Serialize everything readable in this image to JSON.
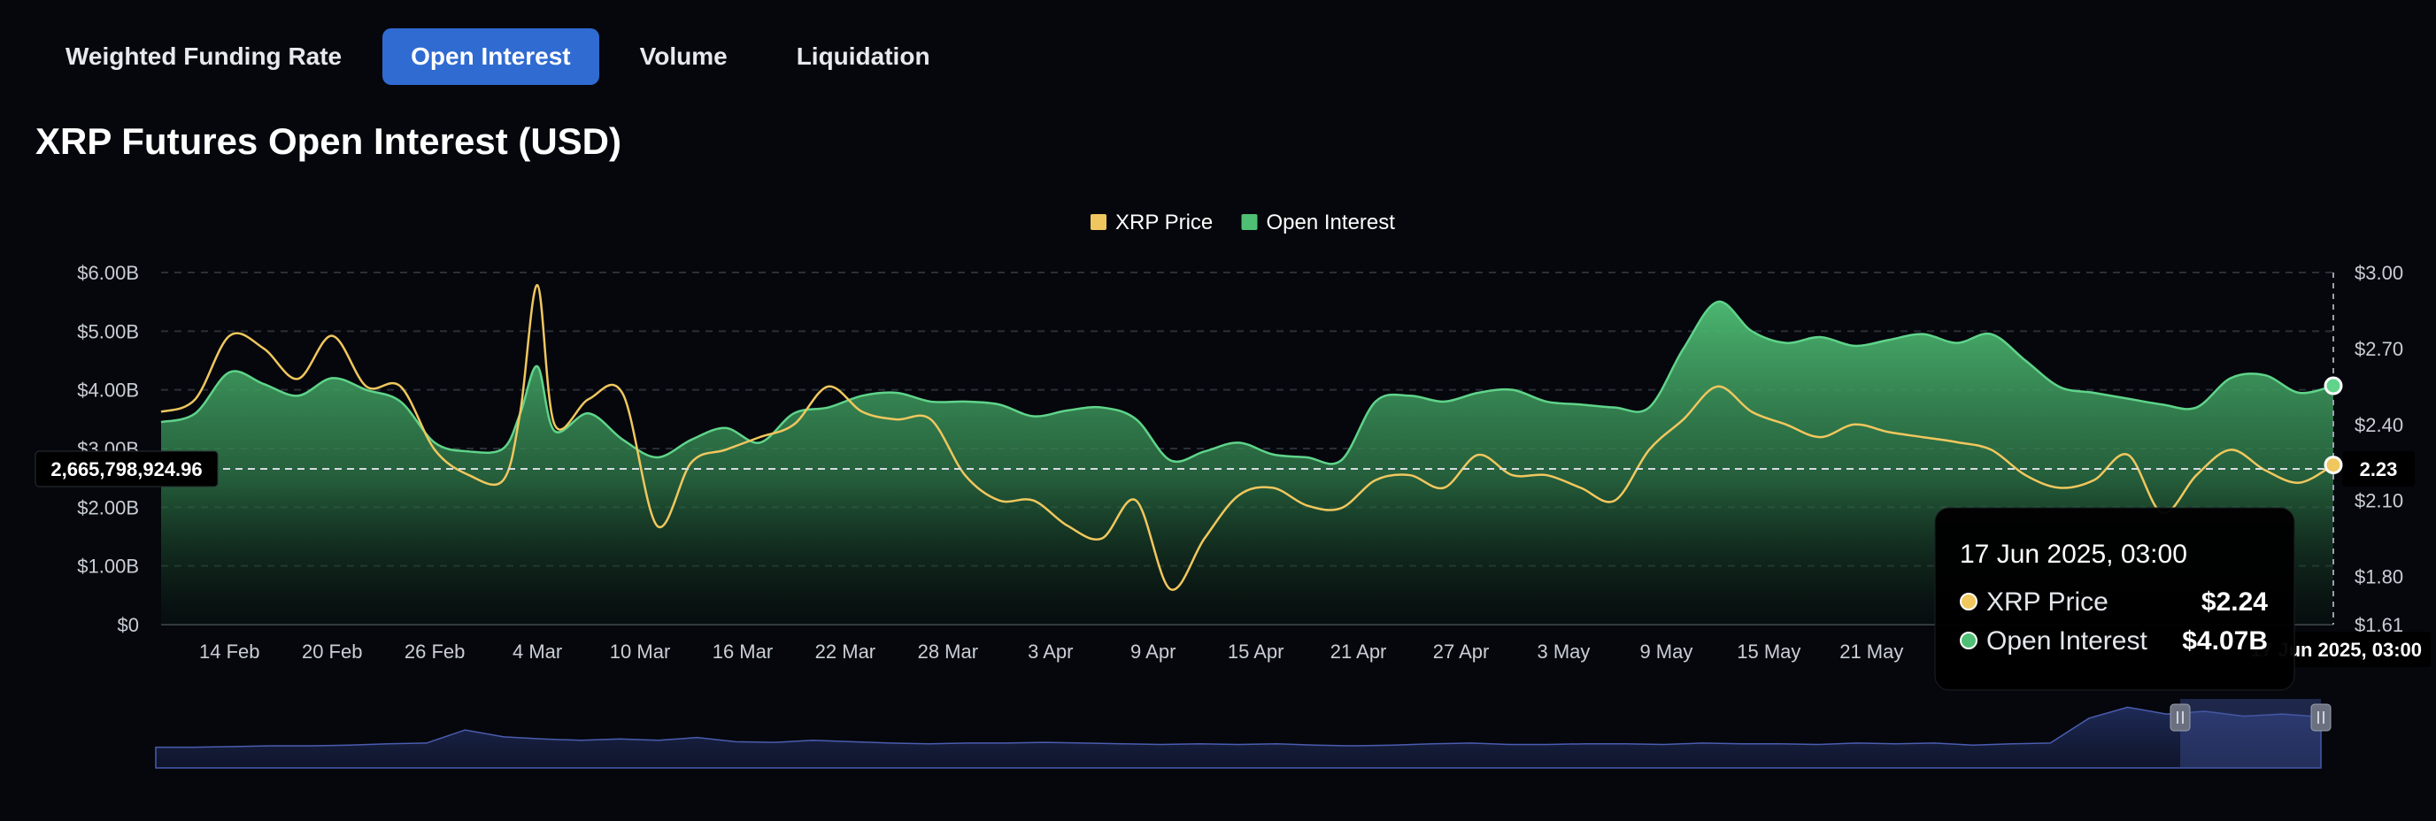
{
  "tabs": [
    {
      "label": "Weighted Funding Rate",
      "active": false
    },
    {
      "label": "Open Interest",
      "active": true
    },
    {
      "label": "Volume",
      "active": false
    },
    {
      "label": "Liquidation",
      "active": false
    }
  ],
  "page_title": "XRP Futures Open Interest (USD)",
  "colors": {
    "accent": "#2f6bd1",
    "price": "#f0c75e",
    "oi": "#4fbf75",
    "navigator": "#3d4f94"
  },
  "chart_data": {
    "type": "area",
    "legend": {
      "position": "top-center",
      "items": [
        {
          "name": "XRP Price",
          "color": "#f0c75e"
        },
        {
          "name": "Open Interest",
          "color": "#4fbf75"
        }
      ]
    },
    "y_left": {
      "ticks": [
        "$0",
        "$1.00B",
        "$2.00B",
        "$3.00B",
        "$4.00B",
        "$5.00B",
        "$6.00B"
      ],
      "range": [
        0,
        6
      ]
    },
    "y_right": {
      "ticks": [
        "$1.61",
        "$1.80",
        "$2.10",
        "$2.40",
        "$2.70",
        "$3.00"
      ],
      "range": [
        1.61,
        3.0
      ]
    },
    "x_ticks": [
      "14 Feb",
      "20 Feb",
      "26 Feb",
      "4 Mar",
      "10 Mar",
      "16 Mar",
      "22 Mar",
      "28 Mar",
      "3 Apr",
      "9 Apr",
      "15 Apr",
      "21 Apr",
      "27 Apr",
      "3 May",
      "9 May",
      "15 May",
      "21 May"
    ],
    "x_range": [
      "10 Feb",
      "17 Jun"
    ],
    "grid": true,
    "series": [
      {
        "name": "Open Interest",
        "unit": "B USD",
        "x": [
          "10 Feb",
          "12 Feb",
          "14 Feb",
          "16 Feb",
          "18 Feb",
          "20 Feb",
          "22 Feb",
          "24 Feb",
          "26 Feb",
          "28 Feb",
          "2 Mar",
          "3 Mar",
          "4 Mar",
          "5 Mar",
          "7 Mar",
          "9 Mar",
          "11 Mar",
          "13 Mar",
          "15 Mar",
          "17 Mar",
          "19 Mar",
          "21 Mar",
          "23 Mar",
          "25 Mar",
          "27 Mar",
          "29 Mar",
          "31 Mar",
          "2 Apr",
          "4 Apr",
          "6 Apr",
          "8 Apr",
          "10 Apr",
          "12 Apr",
          "14 Apr",
          "16 Apr",
          "18 Apr",
          "20 Apr",
          "22 Apr",
          "24 Apr",
          "26 Apr",
          "28 Apr",
          "30 Apr",
          "2 May",
          "4 May",
          "6 May",
          "8 May",
          "10 May",
          "12 May",
          "14 May",
          "16 May",
          "18 May",
          "20 May",
          "22 May",
          "24 May",
          "26 May",
          "28 May",
          "30 May",
          "1 Jun",
          "3 Jun",
          "5 Jun",
          "7 Jun",
          "9 Jun",
          "11 Jun",
          "13 Jun",
          "15 Jun",
          "17 Jun"
        ],
        "values": [
          3.45,
          3.6,
          4.3,
          4.1,
          3.9,
          4.2,
          4.0,
          3.8,
          3.1,
          2.95,
          3.0,
          3.6,
          4.4,
          3.3,
          3.6,
          3.15,
          2.85,
          3.15,
          3.35,
          3.1,
          3.6,
          3.7,
          3.9,
          3.95,
          3.8,
          3.8,
          3.75,
          3.55,
          3.65,
          3.7,
          3.5,
          2.8,
          2.95,
          3.1,
          2.9,
          2.85,
          2.8,
          3.8,
          3.9,
          3.8,
          3.95,
          4.0,
          3.8,
          3.75,
          3.7,
          3.7,
          4.7,
          5.5,
          5.0,
          4.8,
          4.9,
          4.75,
          4.85,
          4.95,
          4.8,
          4.95,
          4.5,
          4.05,
          3.95,
          3.85,
          3.75,
          3.7,
          4.2,
          4.25,
          3.95,
          4.07
        ]
      },
      {
        "name": "XRP Price",
        "unit": "USD",
        "x": [
          "10 Feb",
          "12 Feb",
          "14 Feb",
          "16 Feb",
          "18 Feb",
          "20 Feb",
          "22 Feb",
          "24 Feb",
          "26 Feb",
          "28 Feb",
          "2 Mar",
          "3 Mar",
          "4 Mar",
          "5 Mar",
          "7 Mar",
          "9 Mar",
          "11 Mar",
          "13 Mar",
          "15 Mar",
          "17 Mar",
          "19 Mar",
          "21 Mar",
          "23 Mar",
          "25 Mar",
          "27 Mar",
          "29 Mar",
          "31 Mar",
          "2 Apr",
          "4 Apr",
          "6 Apr",
          "8 Apr",
          "10 Apr",
          "12 Apr",
          "14 Apr",
          "16 Apr",
          "18 Apr",
          "20 Apr",
          "22 Apr",
          "24 Apr",
          "26 Apr",
          "28 Apr",
          "30 Apr",
          "2 May",
          "4 May",
          "6 May",
          "8 May",
          "10 May",
          "12 May",
          "14 May",
          "16 May",
          "18 May",
          "20 May",
          "22 May",
          "24 May",
          "26 May",
          "28 May",
          "30 May",
          "1 Jun",
          "3 Jun",
          "5 Jun",
          "7 Jun",
          "9 Jun",
          "11 Jun",
          "13 Jun",
          "15 Jun",
          "17 Jun"
        ],
        "values": [
          2.45,
          2.5,
          2.75,
          2.7,
          2.58,
          2.75,
          2.55,
          2.55,
          2.3,
          2.2,
          2.18,
          2.45,
          2.95,
          2.4,
          2.5,
          2.52,
          2.0,
          2.25,
          2.3,
          2.35,
          2.4,
          2.55,
          2.45,
          2.42,
          2.42,
          2.2,
          2.1,
          2.1,
          2.0,
          1.95,
          2.1,
          1.75,
          1.95,
          2.12,
          2.15,
          2.08,
          2.07,
          2.18,
          2.2,
          2.15,
          2.28,
          2.2,
          2.2,
          2.15,
          2.1,
          2.3,
          2.42,
          2.55,
          2.45,
          2.4,
          2.35,
          2.4,
          2.37,
          2.35,
          2.33,
          2.3,
          2.2,
          2.15,
          2.18,
          2.28,
          2.05,
          2.2,
          2.3,
          2.22,
          2.17,
          2.24
        ]
      }
    ],
    "crosshair": {
      "left_value": "2,665,798,924.96",
      "right_value": "2.23",
      "x_label": "17 Jun 2025, 03:00"
    },
    "tooltip": {
      "title": "17 Jun 2025, 03:00",
      "rows": [
        {
          "label": "XRP Price",
          "value": "$2.24",
          "color": "#f0c75e"
        },
        {
          "label": "Open Interest",
          "value": "$4.07B",
          "color": "#4fbf75"
        }
      ]
    },
    "navigator": {
      "values": [
        0.3,
        0.3,
        0.31,
        0.32,
        0.32,
        0.33,
        0.35,
        0.36,
        0.55,
        0.45,
        0.42,
        0.4,
        0.42,
        0.4,
        0.44,
        0.38,
        0.37,
        0.4,
        0.38,
        0.36,
        0.35,
        0.36,
        0.36,
        0.37,
        0.36,
        0.35,
        0.34,
        0.35,
        0.34,
        0.35,
        0.33,
        0.32,
        0.33,
        0.35,
        0.36,
        0.34,
        0.34,
        0.35,
        0.35,
        0.34,
        0.36,
        0.35,
        0.35,
        0.34,
        0.36,
        0.35,
        0.36,
        0.33,
        0.35,
        0.36,
        0.72,
        0.88,
        0.78,
        0.82,
        0.75,
        0.78,
        0.74
      ],
      "selection": [
        0.935,
        1.0
      ]
    }
  }
}
